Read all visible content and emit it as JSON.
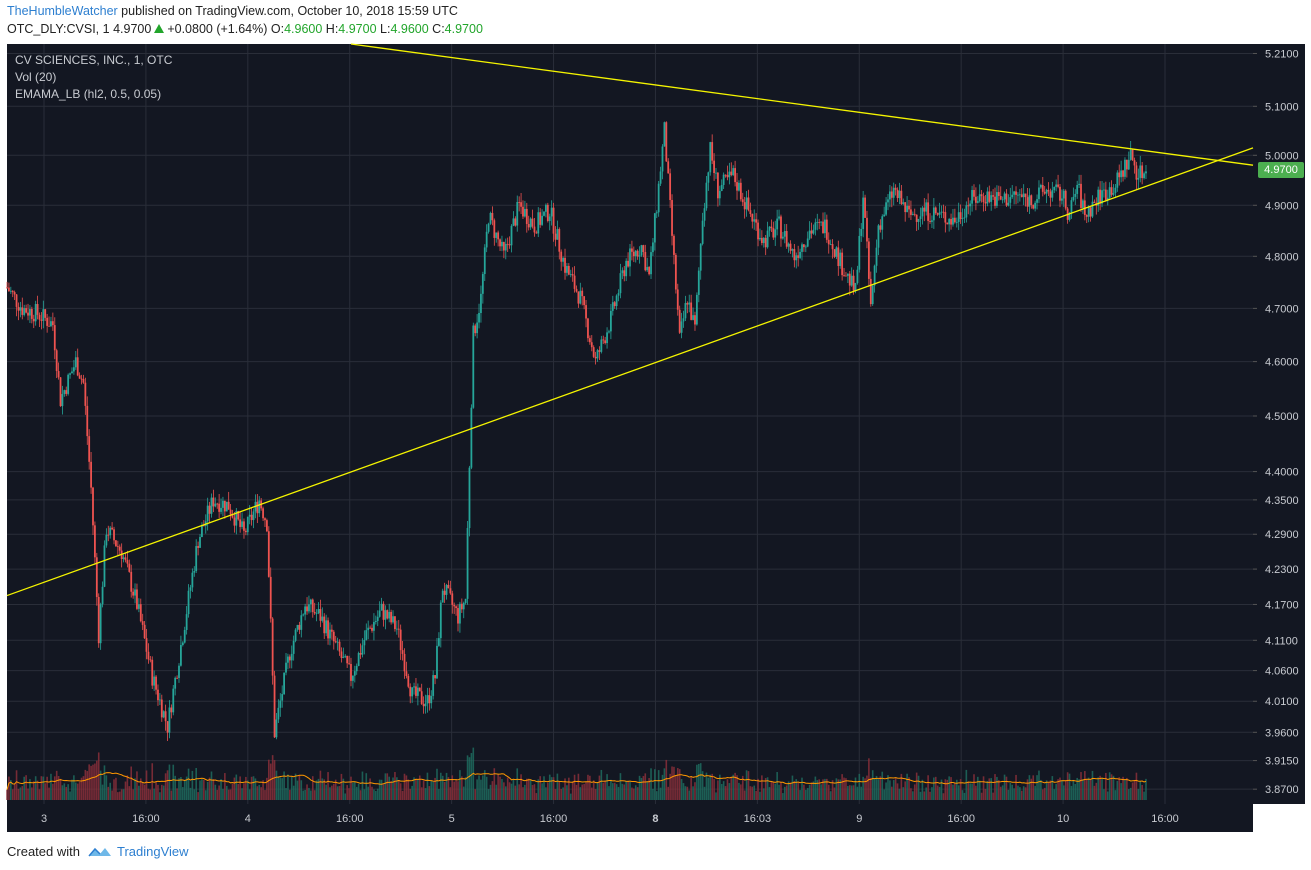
{
  "header": {
    "author": "TheHumbleWatcher",
    "published": "published on TradingView.com, October 10, 2018 15:59 UTC",
    "symbol": "OTC_DLY:CVSI, 1",
    "last": "4.9700",
    "change": "+0.0800 (+1.64%)",
    "o_label": "O:",
    "o_value": "4.9600",
    "h_label": "H:",
    "h_value": "4.9700",
    "l_label": "L:",
    "l_value": "4.9600",
    "c_label": "C:",
    "c_value": "4.9700"
  },
  "legend": {
    "title": "CV SCIENCES, INC., 1, OTC",
    "vol": "Vol (20)",
    "indicator": "EMAMA_LB (hl2, 0.5, 0.05)"
  },
  "price_label": "4.9700",
  "footer": {
    "created": "Created with",
    "brand": "TradingView"
  },
  "colors": {
    "background": "#131722",
    "grid": "#2a2e39",
    "up": "#26a69a",
    "down": "#ef5350",
    "trendline": "#f5f500",
    "volume_ma": "#ff9800",
    "axis_text": "#c8cbd1",
    "last_price": "#4caf50"
  },
  "chart_data": {
    "type": "candlestick",
    "y_scale": "log",
    "ylim": [
      3.85,
      5.23
    ],
    "y_ticks": [
      "5.2100",
      "5.1000",
      "5.0000",
      "4.9000",
      "4.8000",
      "4.7000",
      "4.6000",
      "4.5000",
      "4.4000",
      "4.3500",
      "4.2900",
      "4.2300",
      "4.1700",
      "4.1100",
      "4.0600",
      "4.0100",
      "3.9600",
      "3.9150",
      "3.8700"
    ],
    "x_ticks": [
      "3",
      "16:00",
      "4",
      "16:00",
      "5",
      "16:00",
      "8",
      "16:03",
      "9",
      "16:00",
      "10",
      "16:00"
    ],
    "x_ticks_bold": [
      "8"
    ],
    "price_path": [
      {
        "t": 0,
        "p": 4.74
      },
      {
        "t": 2,
        "p": 4.7
      },
      {
        "t": 4,
        "p": 4.69
      },
      {
        "t": 6,
        "p": 4.67
      },
      {
        "t": 7,
        "p": 4.53
      },
      {
        "t": 9,
        "p": 4.6
      },
      {
        "t": 10,
        "p": 4.56
      },
      {
        "t": 11,
        "p": 4.37
      },
      {
        "t": 12,
        "p": 4.12
      },
      {
        "t": 13,
        "p": 4.3
      },
      {
        "t": 15,
        "p": 4.26
      },
      {
        "t": 17,
        "p": 4.17
      },
      {
        "t": 19,
        "p": 4.05
      },
      {
        "t": 21,
        "p": 3.97
      },
      {
        "t": 23,
        "p": 4.12
      },
      {
        "t": 25,
        "p": 4.28
      },
      {
        "t": 27,
        "p": 4.35
      },
      {
        "t": 29,
        "p": 4.34
      },
      {
        "t": 31,
        "p": 4.29
      },
      {
        "t": 33,
        "p": 4.35
      },
      {
        "t": 34,
        "p": 4.31
      },
      {
        "t": 35,
        "p": 3.96
      },
      {
        "t": 37,
        "p": 4.09
      },
      {
        "t": 39,
        "p": 4.17
      },
      {
        "t": 41,
        "p": 4.15
      },
      {
        "t": 43,
        "p": 4.1
      },
      {
        "t": 45,
        "p": 4.05
      },
      {
        "t": 47,
        "p": 4.12
      },
      {
        "t": 49,
        "p": 4.16
      },
      {
        "t": 51,
        "p": 4.13
      },
      {
        "t": 53,
        "p": 4.02
      },
      {
        "t": 55,
        "p": 4.01
      },
      {
        "t": 56,
        "p": 4.05
      },
      {
        "t": 57,
        "p": 4.2
      },
      {
        "t": 59,
        "p": 4.15
      },
      {
        "t": 60,
        "p": 4.18
      },
      {
        "t": 61,
        "p": 4.65
      },
      {
        "t": 62,
        "p": 4.72
      },
      {
        "t": 63,
        "p": 4.88
      },
      {
        "t": 65,
        "p": 4.8
      },
      {
        "t": 67,
        "p": 4.9
      },
      {
        "t": 69,
        "p": 4.86
      },
      {
        "t": 71,
        "p": 4.89
      },
      {
        "t": 73,
        "p": 4.78
      },
      {
        "t": 75,
        "p": 4.72
      },
      {
        "t": 77,
        "p": 4.6
      },
      {
        "t": 79,
        "p": 4.68
      },
      {
        "t": 81,
        "p": 4.79
      },
      {
        "t": 83,
        "p": 4.82
      },
      {
        "t": 84,
        "p": 4.76
      },
      {
        "t": 85,
        "p": 4.9
      },
      {
        "t": 86,
        "p": 5.05
      },
      {
        "t": 87,
        "p": 4.84
      },
      {
        "t": 88,
        "p": 4.64
      },
      {
        "t": 89,
        "p": 4.72
      },
      {
        "t": 90,
        "p": 4.66
      },
      {
        "t": 91,
        "p": 4.88
      },
      {
        "t": 92,
        "p": 5.01
      },
      {
        "t": 93,
        "p": 4.93
      },
      {
        "t": 95,
        "p": 4.96
      },
      {
        "t": 97,
        "p": 4.89
      },
      {
        "t": 99,
        "p": 4.83
      },
      {
        "t": 101,
        "p": 4.86
      },
      {
        "t": 103,
        "p": 4.8
      },
      {
        "t": 105,
        "p": 4.85
      },
      {
        "t": 107,
        "p": 4.86
      },
      {
        "t": 109,
        "p": 4.79
      },
      {
        "t": 111,
        "p": 4.73
      },
      {
        "t": 112,
        "p": 4.92
      },
      {
        "t": 113,
        "p": 4.7
      },
      {
        "t": 114,
        "p": 4.86
      },
      {
        "t": 116,
        "p": 4.93
      },
      {
        "t": 118,
        "p": 4.88
      },
      {
        "t": 120,
        "p": 4.89
      },
      {
        "t": 122,
        "p": 4.88
      },
      {
        "t": 124,
        "p": 4.87
      },
      {
        "t": 126,
        "p": 4.91
      },
      {
        "t": 128,
        "p": 4.92
      },
      {
        "t": 130,
        "p": 4.91
      },
      {
        "t": 132,
        "p": 4.92
      },
      {
        "t": 134,
        "p": 4.91
      },
      {
        "t": 136,
        "p": 4.93
      },
      {
        "t": 138,
        "p": 4.92
      },
      {
        "t": 139,
        "p": 4.88
      },
      {
        "t": 140,
        "p": 4.94
      },
      {
        "t": 141,
        "p": 4.88
      },
      {
        "t": 143,
        "p": 4.92
      },
      {
        "t": 145,
        "p": 4.94
      },
      {
        "t": 147,
        "p": 5.0
      },
      {
        "t": 148,
        "p": 4.96
      },
      {
        "t": 149,
        "p": 4.97
      }
    ],
    "trendlines": [
      {
        "name": "resistance",
        "t1": 45,
        "p1": 5.23,
        "t2": 163,
        "p2": 4.98
      },
      {
        "name": "support",
        "t1": 0,
        "p1": 4.185,
        "t2": 163,
        "p2": 5.015
      }
    ]
  }
}
